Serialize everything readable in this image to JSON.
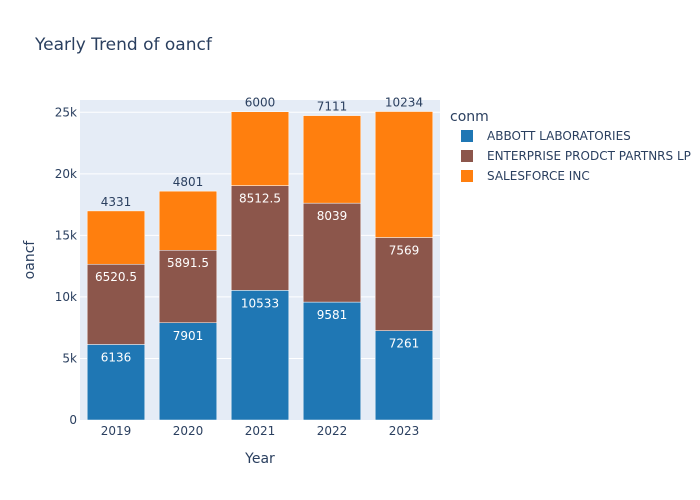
{
  "chart_data": {
    "type": "bar",
    "title": "Yearly Trend of oancf",
    "xlabel": "Year",
    "ylabel": "oancf",
    "categories": [
      "2019",
      "2020",
      "2021",
      "2022",
      "2023"
    ],
    "ylim": [
      0,
      26000
    ],
    "yticks": [
      0,
      5000,
      10000,
      15000,
      20000,
      25000
    ],
    "ytick_labels": [
      "0",
      "5k",
      "10k",
      "15k",
      "20k",
      "25k"
    ],
    "stacked": true,
    "legend_title": "conm",
    "legend_position": "top-right",
    "grid": true,
    "series": [
      {
        "name": "ABBOTT LABORATORIES",
        "color": "#1f77b4",
        "values": [
          6136,
          7901,
          10533,
          9581,
          7261
        ],
        "labels": [
          "6136",
          "7901",
          "10533",
          "9581",
          "7261"
        ]
      },
      {
        "name": "ENTERPRISE PRODCT PARTNRS LP",
        "color": "#8c564b",
        "values": [
          6520.5,
          5891.5,
          8512.5,
          8039,
          7569
        ],
        "labels": [
          "6520.5",
          "5891.5",
          "8512.5",
          "8039",
          "7569"
        ]
      },
      {
        "name": "SALESFORCE INC",
        "color": "#ff7f0e",
        "values": [
          4331,
          4801,
          6000,
          7111,
          10234
        ],
        "labels": [
          "4331",
          "4801",
          "6000",
          "7111",
          "10234"
        ]
      }
    ]
  }
}
